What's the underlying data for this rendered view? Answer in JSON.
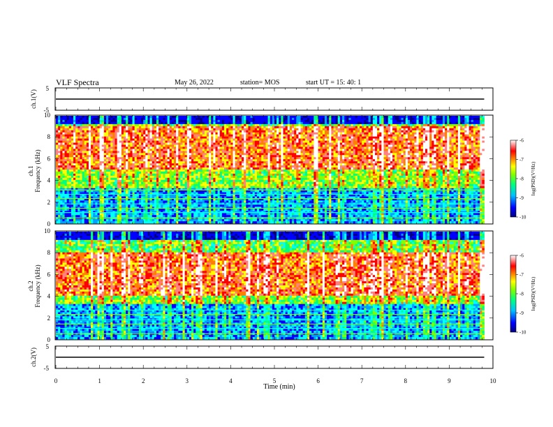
{
  "header": {
    "title": "VLF Spectra",
    "date": "May 26, 2022",
    "station": "station= MOS",
    "start": "start  UT  =   15: 40: 1"
  },
  "chart_data": [
    {
      "type": "line",
      "panel": "ch1-voltage",
      "ylabel": "ch.1(V)",
      "ylim": [
        -5,
        5
      ],
      "y_ticks": [
        "5",
        "-5"
      ],
      "xlim": [
        0,
        10
      ],
      "series": [
        {
          "x": [
            0,
            9.8
          ],
          "y": [
            0,
            0
          ]
        }
      ]
    },
    {
      "type": "heatmap",
      "panel": "ch1-spectrogram",
      "ylabel_line1": "ch.1",
      "ylabel_line2": "Frequency (kHz)",
      "ylim": [
        0,
        10
      ],
      "y_ticks": [
        "0",
        "2",
        "4",
        "6",
        "8",
        "10"
      ],
      "xlim": [
        0,
        10
      ],
      "data_extent_x": [
        0,
        9.8
      ],
      "colorbar": {
        "label": "log(PSD)(V²/Hz)",
        "ticks": [
          "-6",
          "-7",
          "-8",
          "-9",
          "-10"
        ],
        "range": [
          -10,
          -6
        ]
      },
      "bands_khz": [
        0.5,
        1.0,
        1.4,
        1.8,
        2.3,
        2.7,
        3.1
      ],
      "background_band_khz": [
        5,
        9
      ]
    },
    {
      "type": "heatmap",
      "panel": "ch2-spectrogram",
      "ylabel_line1": "ch.2",
      "ylabel_line2": "Frequency (kHz)",
      "ylim": [
        0,
        10
      ],
      "y_ticks": [
        "0",
        "2",
        "4",
        "6",
        "8",
        "10"
      ],
      "xlim": [
        0,
        10
      ],
      "data_extent_x": [
        0,
        9.8
      ],
      "colorbar": {
        "label": "log(PSD)(V²/Hz)",
        "ticks": [
          "-6",
          "-7",
          "-8",
          "-9",
          "-10"
        ],
        "range": [
          -10,
          -6
        ]
      },
      "bands_khz": [
        0.5,
        1.0,
        1.4,
        1.8,
        2.3,
        2.7
      ],
      "background_band_khz": [
        4,
        8
      ]
    },
    {
      "type": "line",
      "panel": "ch2-voltage",
      "ylabel": "ch.2(V)",
      "ylim": [
        -5,
        5
      ],
      "y_ticks": [
        "5",
        "-5"
      ],
      "xlim": [
        0,
        10
      ],
      "series": [
        {
          "x": [
            0,
            9.8
          ],
          "y": [
            0,
            0
          ]
        }
      ]
    }
  ],
  "x_axis": {
    "label": "Time (min)",
    "ticks": [
      "0",
      "1",
      "2",
      "3",
      "4",
      "5",
      "6",
      "7",
      "8",
      "9",
      "10"
    ]
  },
  "colors": {
    "colormap": [
      "#000080",
      "#0000ff",
      "#00a0ff",
      "#00ffff",
      "#00ff80",
      "#80ff00",
      "#ffff00",
      "#ff8000",
      "#ff0000",
      "#ff8080",
      "#ffffff"
    ]
  }
}
